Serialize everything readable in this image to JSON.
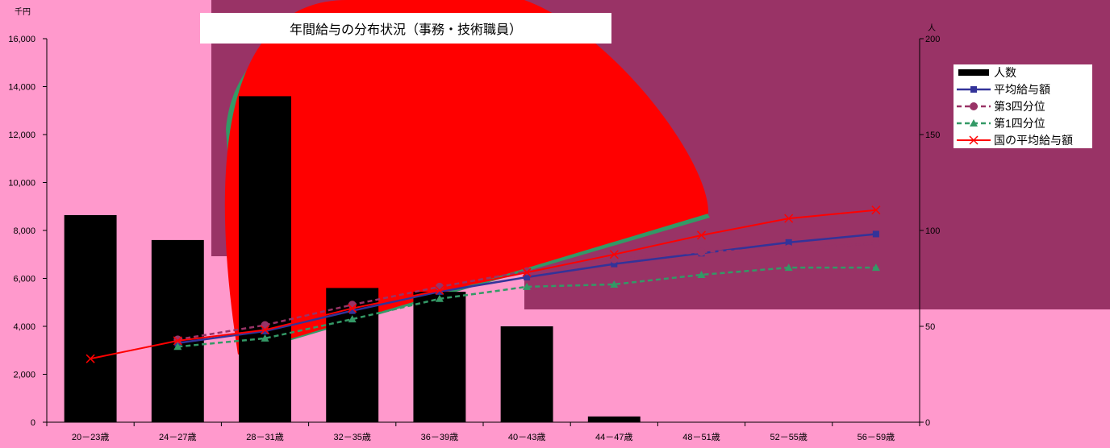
{
  "chart_data": {
    "type": "line",
    "title": "年間給与の分布状況（事務・技術職員）",
    "left_axis_unit": "千円",
    "right_axis_unit": "人",
    "categories": [
      "20－23歳",
      "24－27歳",
      "28－31歳",
      "32－35歳",
      "36－39歳",
      "40－43歳",
      "44－47歳",
      "48－51歳",
      "52－55歳",
      "56－59歳"
    ],
    "left_ylim": [
      0,
      16000
    ],
    "left_ticks": [
      "0",
      "2,000",
      "4,000",
      "6,000",
      "8,000",
      "10,000",
      "12,000",
      "14,000",
      "16,000"
    ],
    "right_ylim": [
      0,
      200
    ],
    "right_ticks": [
      "0",
      "50",
      "100",
      "150",
      "200"
    ],
    "grid": false,
    "legend_position": "right",
    "series": [
      {
        "name": "人数",
        "kind": "bar",
        "axis": "right",
        "color": "#000000",
        "values": [
          108,
          95,
          170,
          70,
          68,
          50,
          3,
          null,
          null,
          null
        ]
      },
      {
        "name": "平均給与額",
        "kind": "line",
        "axis": "left",
        "color": "#333399",
        "values": [
          null,
          3300,
          3800,
          4650,
          5450,
          6050,
          6600,
          7050,
          7500,
          7850
        ]
      },
      {
        "name": "第3四分位",
        "kind": "line",
        "axis": "left",
        "color": "#993366",
        "values": [
          null,
          3450,
          4050,
          4900,
          5650,
          6300,
          6800,
          7100,
          7250,
          7450
        ]
      },
      {
        "name": "第1四分位",
        "kind": "line",
        "axis": "left",
        "color": "#339966",
        "values": [
          null,
          3150,
          3500,
          4300,
          5150,
          5650,
          5750,
          6150,
          6450,
          6450
        ]
      },
      {
        "name": "国の平均給与額",
        "kind": "line",
        "axis": "left",
        "color": "#ff0000",
        "values": [
          2650,
          3400,
          3850,
          4750,
          5500,
          6250,
          7000,
          7800,
          8500,
          8850
        ]
      }
    ]
  }
}
